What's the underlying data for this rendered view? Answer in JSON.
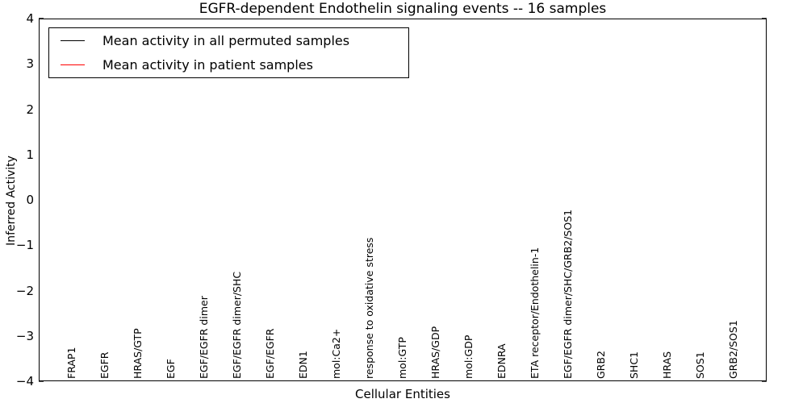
{
  "title": "EGFR-dependent Endothelin signaling events -- 16 samples",
  "legend": {
    "items": [
      {
        "label": "Mean activity in all permuted samples",
        "color": "#000000"
      },
      {
        "label": "Mean activity in patient samples",
        "color": "#ff0000"
      }
    ],
    "position": "upper left"
  },
  "colors": {
    "patient_line": "#ff0000",
    "permuted_line": "#000000",
    "patient_band": "#e84040",
    "permuted_band": "#999999",
    "axis": "#000000",
    "background": "#ffffff"
  },
  "chart_data": {
    "type": "line",
    "title": "EGFR-dependent Endothelin signaling events -- 16 samples",
    "xlabel": "Cellular Entities",
    "ylabel": "Inferred Activity",
    "ylim": [
      -4,
      4
    ],
    "yticks": [
      4,
      3,
      2,
      1,
      0,
      -1,
      -2,
      -3,
      -4
    ],
    "x_major_tick_indices": [
      4,
      9,
      14,
      19
    ],
    "grid": false,
    "legend_position": "upper left",
    "zero_line": {
      "style": "dotted",
      "color": "#000000",
      "y": 0
    },
    "categories": [
      "FRAP1",
      "EGFR",
      "HRAS/GTP",
      "EGF",
      "EGF/EGFR dimer",
      "EGF/EGFR dimer/SHC",
      "EGF/EGFR",
      "EDN1",
      "mol:Ca2+",
      "response to oxidative stress",
      "mol:GTP",
      "HRAS/GDP",
      "mol:GDP",
      "EDNRA",
      "ETA receptor/Endothelin-1",
      "EGF/EGFR dimer/SHC/GRB2/SOS1",
      "GRB2",
      "SHC1",
      "HRAS",
      "SOS1",
      "GRB2/SOS1"
    ],
    "series": [
      {
        "name": "Mean activity in all permuted samples",
        "color": "#000000",
        "values": [
          0.0,
          0.05,
          0.03,
          0.02,
          0.04,
          0.04,
          0.04,
          0.03,
          0.01,
          0.0,
          0.0,
          0.02,
          0.03,
          0.03,
          0.03,
          0.04,
          0.03,
          0.03,
          0.03,
          0.03,
          0.04
        ]
      },
      {
        "name": "Mean activity in patient samples",
        "color": "#ff0000",
        "values": [
          -0.12,
          -0.04,
          -0.01,
          0.0,
          0.02,
          0.02,
          0.03,
          0.02,
          0.0,
          0.0,
          0.0,
          0.01,
          0.02,
          0.02,
          0.03,
          0.04,
          0.04,
          0.04,
          0.04,
          0.04,
          0.05
        ]
      }
    ],
    "bands": [
      {
        "name": "permuted-std-band",
        "color": "#999999",
        "opacity": 0.35,
        "center_series": 0,
        "halfwidths": [
          0.11,
          0.12,
          0.11,
          0.11,
          0.12,
          0.12,
          0.12,
          0.11,
          0.08,
          0.07,
          0.07,
          0.09,
          0.09,
          0.09,
          0.09,
          0.08,
          0.07,
          0.07,
          0.07,
          0.07,
          0.07
        ]
      },
      {
        "name": "patient-band-outer",
        "color": "#e84040",
        "opacity": 0.18,
        "center_series": 1,
        "halfwidths": [
          0.14,
          0.2,
          0.18,
          0.16,
          0.21,
          0.21,
          0.2,
          0.18,
          0.07,
          0.04,
          0.05,
          0.16,
          0.18,
          0.16,
          0.14,
          0.11,
          0.04,
          0.035,
          0.035,
          0.035,
          0.05
        ]
      },
      {
        "name": "patient-band-mid",
        "color": "#e84040",
        "opacity": 0.25,
        "center_series": 1,
        "halfwidths": [
          0.08,
          0.12,
          0.11,
          0.1,
          0.13,
          0.13,
          0.12,
          0.11,
          0.04,
          0.025,
          0.03,
          0.1,
          0.11,
          0.1,
          0.08,
          0.07,
          0.025,
          0.02,
          0.02,
          0.02,
          0.03
        ]
      },
      {
        "name": "patient-band-inner",
        "color": "#e84040",
        "opacity": 0.35,
        "center_series": 1,
        "halfwidths": [
          0.04,
          0.06,
          0.055,
          0.05,
          0.065,
          0.065,
          0.06,
          0.055,
          0.02,
          0.012,
          0.015,
          0.05,
          0.055,
          0.05,
          0.04,
          0.035,
          0.012,
          0.01,
          0.01,
          0.01,
          0.015
        ]
      }
    ]
  }
}
